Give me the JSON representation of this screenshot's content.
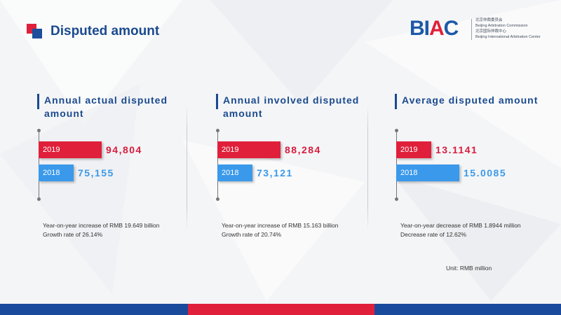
{
  "page": {
    "title": "Disputed amount",
    "unit_note": "Unit:  RMB million"
  },
  "logo": {
    "mark_left": "BI",
    "mark_red": "A",
    "mark_right": "C",
    "line1": "北京仲裁委员会",
    "line2": "Beijing Arbitration Commission",
    "line3": "北京国际仲裁中心",
    "line4": "Beijing International Arbitration Center"
  },
  "colors": {
    "title_blue": "#1a4a8e",
    "bar_2019": "#e0203a",
    "bar_2018": "#3a99ea"
  },
  "chart_data": [
    {
      "type": "bar",
      "title": "Annual actual disputed amount",
      "categories": [
        "2019",
        "2018"
      ],
      "values": [
        94804,
        75155
      ],
      "value_labels": [
        "94,804",
        "75,155"
      ],
      "note_line1": "Year-on-year increase of RMB 19.649 billion",
      "note_line2": "Growth rate of 26.14%"
    },
    {
      "type": "bar",
      "title": "Annual involved disputed amount",
      "categories": [
        "2019",
        "2018"
      ],
      "values": [
        88284,
        73121
      ],
      "value_labels": [
        "88,284",
        "73,121"
      ],
      "note_line1": "Year-on-year increase of RMB 15.163 billion",
      "note_line2": "Growth rate of 20.74%"
    },
    {
      "type": "bar",
      "title": "Average disputed amount",
      "categories": [
        "2019",
        "2018"
      ],
      "values": [
        13.1141,
        15.0085
      ],
      "value_labels": [
        "13.1141",
        "15.0085"
      ],
      "note_line1": "Year-on-year decrease of RMB 1.8944 million",
      "note_line2": "Decrease rate of 12.62%"
    }
  ]
}
